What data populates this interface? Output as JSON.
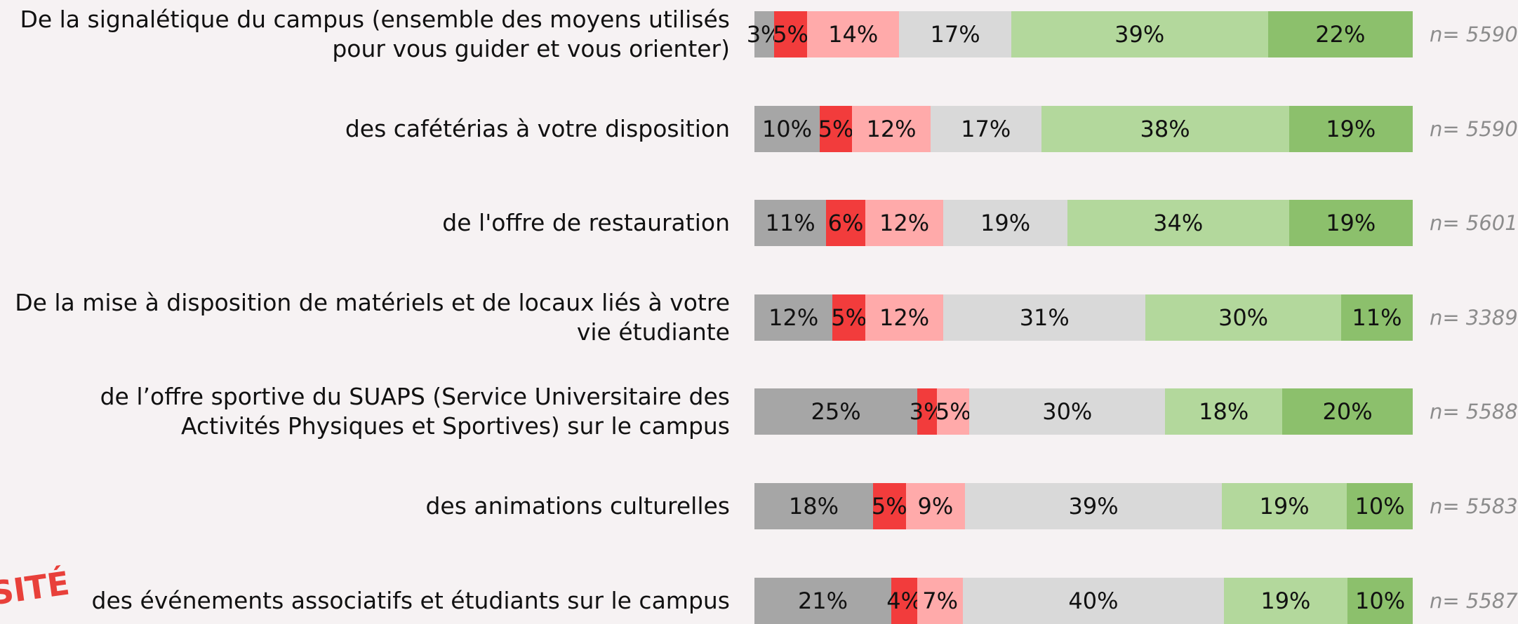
{
  "chart_data": {
    "type": "stacked_barh",
    "categories": [
      "De la signalétique du campus (ensemble des moyens utilisés\npour vous guider et vous orienter)",
      "des cafétérias à votre disposition",
      "de l'offre de restauration",
      "De la mise à disposition de matériels et de locaux liés à votre\nvie étudiante",
      "de l’offre sportive du SUAPS (Service Universitaire des\nActivités Physiques et Sportives) sur le campus",
      "des animations culturelles",
      "des événements associatifs et étudiants sur le campus"
    ],
    "series": [
      {
        "color": "#a6a6a6",
        "values": [
          3,
          10,
          11,
          12,
          25,
          18,
          21
        ],
        "value_labels": [
          "3%",
          "10%",
          "11%",
          "12%",
          "25%",
          "18%",
          "21%"
        ]
      },
      {
        "color": "#f23c3c",
        "values": [
          5,
          5,
          6,
          5,
          3,
          5,
          4
        ],
        "value_labels": [
          "5%",
          "5%",
          "6%",
          "5%",
          "3%",
          "5%",
          "4%"
        ]
      },
      {
        "color": "#ffaaaa",
        "values": [
          14,
          12,
          12,
          12,
          5,
          9,
          7
        ],
        "value_labels": [
          "14%",
          "12%",
          "12%",
          "12%",
          "5%",
          "9%",
          "7%"
        ]
      },
      {
        "color": "#d9d9d9",
        "values": [
          17,
          17,
          19,
          31,
          30,
          39,
          40
        ],
        "value_labels": [
          "17%",
          "17%",
          "19%",
          "31%",
          "30%",
          "39%",
          "40%"
        ]
      },
      {
        "color": "#b3d89c",
        "values": [
          39,
          38,
          34,
          30,
          18,
          19,
          19
        ],
        "value_labels": [
          "39%",
          "38%",
          "34%",
          "30%",
          "18%",
          "19%",
          "19%"
        ]
      },
      {
        "color": "#8cc06c",
        "values": [
          22,
          19,
          19,
          11,
          20,
          10,
          10
        ],
        "value_labels": [
          "22%",
          "19%",
          "19%",
          "11%",
          "20%",
          "10%",
          "10%"
        ]
      }
    ],
    "annotations": [
      "n= 5590",
      "n= 5590",
      "n= 5601",
      "n= 3389",
      "n= 5588",
      "n= 5583",
      "n= 5587"
    ],
    "logo_text": "SITÉ"
  }
}
